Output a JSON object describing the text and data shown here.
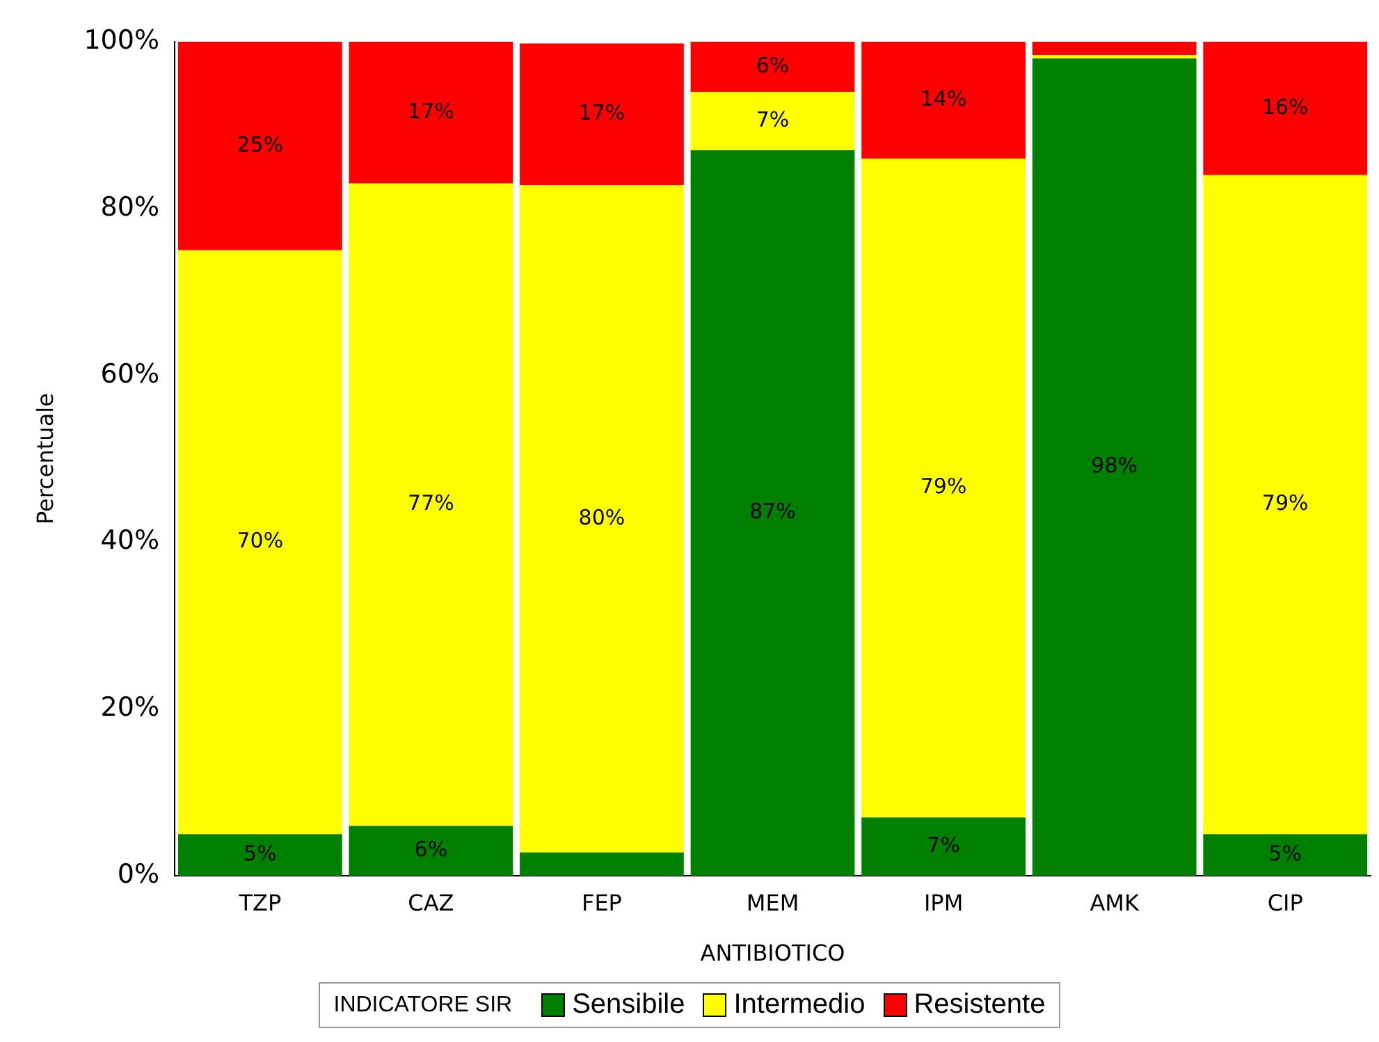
{
  "chart_data": {
    "type": "bar",
    "stacked": true,
    "xlabel": "ANTIBIOTICO",
    "ylabel": "Percentuale",
    "legend_title": "INDICATORE SIR",
    "legend": "bottom",
    "grid": false,
    "categories": [
      "TZP",
      "CAZ",
      "FEP",
      "MEM",
      "IPM",
      "AMK",
      "CIP"
    ],
    "ylim": [
      0,
      100
    ],
    "yticks": [
      {
        "value": 0,
        "label": "0%"
      },
      {
        "value": 20,
        "label": "20%"
      },
      {
        "value": 40,
        "label": "40%"
      },
      {
        "value": 60,
        "label": "60%"
      },
      {
        "value": 80,
        "label": "80%"
      },
      {
        "value": 100,
        "label": "100%"
      }
    ],
    "series": [
      {
        "name": "Sensibile",
        "color": "#008000",
        "values": [
          5,
          6,
          2.8,
          87,
          7,
          98,
          5
        ],
        "value_labels": [
          "5%",
          "6%",
          null,
          "87%",
          "7%",
          "98%",
          "5%"
        ]
      },
      {
        "name": "Intermedio",
        "color": "#ffff00",
        "values": [
          70,
          77,
          80,
          7,
          79,
          0.4,
          79
        ],
        "value_labels": [
          "70%",
          "77%",
          "80%",
          "7%",
          "79%",
          null,
          "79%"
        ]
      },
      {
        "name": "Resistente",
        "color": "#ff0000",
        "values": [
          25,
          17,
          17,
          6,
          14,
          1.6,
          16
        ],
        "value_labels": [
          "25%",
          "17%",
          "17%",
          "6%",
          "14%",
          null,
          "16%"
        ]
      }
    ]
  }
}
